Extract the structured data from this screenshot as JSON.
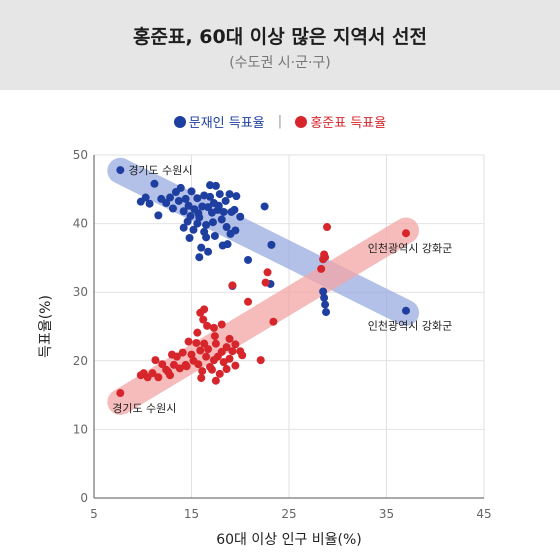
{
  "header": {
    "title": "홍준표, 60대 이상 많은 지역서 선전",
    "subtitle": "(수도권 시·군·구)"
  },
  "legend": {
    "separator": "|"
  },
  "annotations": {
    "blue_start": "경기도 수원시",
    "blue_end": "인천광역시 강화군",
    "red_start": "경기도 수원시",
    "red_end": "인천광역시 강화군"
  },
  "colors": {
    "blue": "#1e3fa0",
    "red": "#d7262b",
    "blue_band": "#9aabdf",
    "red_band": "#f3a6a6"
  },
  "chart_data": {
    "type": "scatter",
    "xlabel": "60대 이상 인구 비율(%)",
    "ylabel": "득표율(%)",
    "xlim": [
      5,
      45
    ],
    "ylim": [
      0,
      50
    ],
    "xticks": [
      5,
      15,
      25,
      35,
      45
    ],
    "yticks": [
      0,
      10,
      20,
      30,
      40,
      50
    ],
    "grid": true,
    "legend_position": "top-center",
    "series": [
      {
        "name": "문재인 득표율",
        "color": "#1e3fa0",
        "trend": [
          [
            7.7,
            47.7
          ],
          [
            37.0,
            27.0
          ]
        ],
        "points": [
          [
            7.7,
            47.8
          ],
          [
            9.8,
            43.2
          ],
          [
            10.3,
            43.8
          ],
          [
            10.7,
            42.9
          ],
          [
            11.2,
            45.8
          ],
          [
            11.6,
            41.2
          ],
          [
            11.9,
            43.6
          ],
          [
            12.4,
            43.0
          ],
          [
            12.8,
            43.8
          ],
          [
            13.1,
            42.2
          ],
          [
            13.4,
            44.6
          ],
          [
            13.7,
            43.3
          ],
          [
            13.9,
            45.2
          ],
          [
            14.2,
            41.8
          ],
          [
            14.4,
            43.6
          ],
          [
            14.7,
            42.6
          ],
          [
            14.9,
            41.1
          ],
          [
            15.0,
            44.7
          ],
          [
            15.3,
            42.1
          ],
          [
            15.6,
            43.7
          ],
          [
            15.8,
            40.9
          ],
          [
            16.1,
            42.5
          ],
          [
            16.3,
            44.1
          ],
          [
            16.5,
            39.8
          ],
          [
            16.7,
            42.4
          ],
          [
            16.9,
            45.6
          ],
          [
            17.1,
            41.6
          ],
          [
            17.3,
            43.0
          ],
          [
            17.5,
            45.5
          ],
          [
            17.7,
            42.0
          ],
          [
            17.9,
            44.3
          ],
          [
            18.1,
            40.6
          ],
          [
            18.3,
            41.7
          ],
          [
            18.5,
            43.3
          ],
          [
            18.9,
            44.3
          ],
          [
            19.1,
            41.7
          ],
          [
            19.4,
            42.0
          ],
          [
            19.6,
            44.0
          ],
          [
            20.0,
            41.0
          ],
          [
            14.8,
            37.9
          ],
          [
            15.6,
            40.0
          ],
          [
            16.0,
            36.5
          ],
          [
            16.5,
            38.0
          ],
          [
            17.4,
            38.2
          ],
          [
            18.2,
            36.8
          ],
          [
            19.0,
            38.5
          ],
          [
            20.8,
            34.7
          ],
          [
            22.5,
            42.5
          ],
          [
            23.2,
            36.9
          ],
          [
            15.8,
            35.1
          ],
          [
            16.7,
            35.9
          ],
          [
            18.7,
            37.0
          ],
          [
            19.5,
            39.0
          ],
          [
            14.2,
            39.4
          ],
          [
            15.2,
            39.1
          ],
          [
            16.3,
            38.8
          ],
          [
            17.2,
            40.2
          ],
          [
            18.6,
            39.5
          ],
          [
            17.8,
            42.6
          ],
          [
            16.9,
            43.9
          ],
          [
            15.7,
            41.5
          ],
          [
            14.6,
            40.3
          ],
          [
            19.2,
            30.9
          ],
          [
            23.1,
            31.2
          ],
          [
            28.5,
            30.1
          ],
          [
            28.6,
            29.2
          ],
          [
            28.7,
            28.2
          ],
          [
            28.8,
            27.1
          ],
          [
            37.0,
            27.3
          ]
        ]
      },
      {
        "name": "홍준표 득표율",
        "color": "#d7262b",
        "trend": [
          [
            7.7,
            14.0
          ],
          [
            37.0,
            39.0
          ]
        ],
        "points": [
          [
            7.7,
            15.3
          ],
          [
            9.8,
            17.9
          ],
          [
            10.5,
            17.6
          ],
          [
            11.0,
            18.2
          ],
          [
            11.6,
            17.6
          ],
          [
            12.0,
            19.5
          ],
          [
            12.4,
            18.7
          ],
          [
            12.8,
            17.9
          ],
          [
            13.2,
            19.4
          ],
          [
            13.5,
            20.6
          ],
          [
            13.8,
            18.9
          ],
          [
            14.1,
            21.2
          ],
          [
            14.4,
            19.4
          ],
          [
            14.7,
            22.8
          ],
          [
            15.0,
            20.9
          ],
          [
            15.2,
            20.0
          ],
          [
            15.5,
            22.6
          ],
          [
            15.7,
            19.5
          ],
          [
            15.9,
            21.5
          ],
          [
            16.1,
            18.5
          ],
          [
            16.3,
            22.5
          ],
          [
            16.5,
            20.6
          ],
          [
            16.7,
            21.7
          ],
          [
            16.9,
            19.1
          ],
          [
            17.1,
            18.7
          ],
          [
            17.3,
            20.1
          ],
          [
            17.5,
            22.5
          ],
          [
            17.7,
            20.6
          ],
          [
            17.9,
            18.1
          ],
          [
            18.1,
            21.3
          ],
          [
            18.3,
            19.8
          ],
          [
            18.6,
            18.8
          ],
          [
            18.9,
            20.3
          ],
          [
            19.2,
            21.4
          ],
          [
            19.5,
            19.3
          ],
          [
            20.0,
            21.4
          ],
          [
            15.6,
            24.1
          ],
          [
            16.2,
            26.0
          ],
          [
            16.6,
            25.1
          ],
          [
            17.3,
            24.8
          ],
          [
            18.1,
            25.3
          ],
          [
            18.9,
            23.2
          ],
          [
            19.5,
            22.4
          ],
          [
            20.2,
            20.8
          ],
          [
            15.9,
            27.0
          ],
          [
            16.3,
            27.5
          ],
          [
            17.4,
            23.6
          ],
          [
            19.2,
            31.0
          ],
          [
            20.8,
            28.6
          ],
          [
            22.1,
            20.1
          ],
          [
            22.6,
            31.4
          ],
          [
            22.8,
            32.9
          ],
          [
            23.4,
            25.7
          ],
          [
            14.5,
            19.2
          ],
          [
            13.0,
            20.9
          ],
          [
            16.0,
            17.5
          ],
          [
            17.5,
            17.1
          ],
          [
            18.6,
            22.0
          ],
          [
            12.6,
            18.4
          ],
          [
            11.3,
            20.1
          ],
          [
            10.1,
            18.2
          ],
          [
            28.3,
            33.4
          ],
          [
            28.5,
            34.8
          ],
          [
            28.6,
            35.5
          ],
          [
            28.7,
            35.1
          ],
          [
            28.9,
            39.5
          ],
          [
            37.0,
            38.6
          ]
        ]
      }
    ]
  }
}
